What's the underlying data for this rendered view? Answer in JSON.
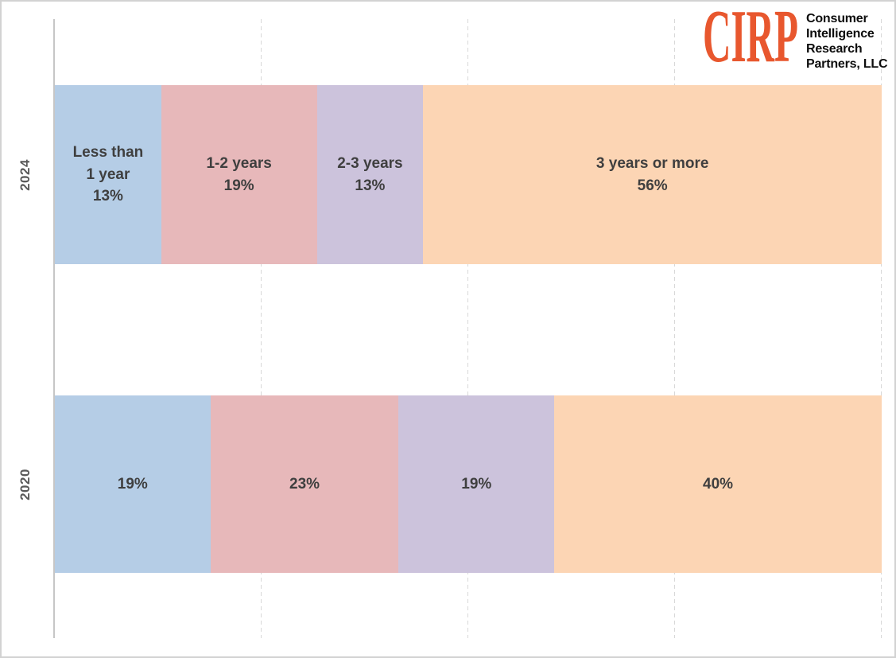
{
  "logo": {
    "acronym": "CIRP",
    "name_lines": [
      "Consumer",
      "Intelligence",
      "Research",
      "Partners, LLC"
    ],
    "accent_color": "#E8572E",
    "text_color": "#0D0D0D"
  },
  "chart_data": {
    "type": "bar",
    "variant": "horizontal-stacked-percentage",
    "title": "",
    "xlabel": "",
    "ylabel": "",
    "unit": "%",
    "xlim": [
      0,
      100
    ],
    "grid": "dashed-vertical",
    "gridlines_pct": [
      25,
      50,
      75,
      100
    ],
    "legend": "none",
    "categories": [
      "2024",
      "2020"
    ],
    "series": [
      {
        "name": "Less than 1 year",
        "values": [
          13,
          19
        ]
      },
      {
        "name": "1-2 years",
        "values": [
          19,
          23
        ]
      },
      {
        "name": "2-3 years",
        "values": [
          13,
          19
        ]
      },
      {
        "name": "3 years or more",
        "values": [
          56,
          40
        ]
      }
    ],
    "colors": [
      "#B5CDE6",
      "#E7B8BA",
      "#CCC3DC",
      "#FCD5B4"
    ],
    "label_color": "#3F3F3F",
    "rows": [
      {
        "category": "2024",
        "segments": [
          {
            "value": 13,
            "label": "Less than\n1 year\n13%"
          },
          {
            "value": 19,
            "label": "1-2 years\n19%"
          },
          {
            "value": 13,
            "label": "2-3 years\n13%"
          },
          {
            "value": 56,
            "label": "3 years or more\n56%"
          }
        ]
      },
      {
        "category": "2020",
        "segments": [
          {
            "value": 19,
            "label": "19%"
          },
          {
            "value": 23,
            "label": "23%"
          },
          {
            "value": 19,
            "label": "19%"
          },
          {
            "value": 40,
            "label": "40%"
          }
        ]
      }
    ]
  }
}
